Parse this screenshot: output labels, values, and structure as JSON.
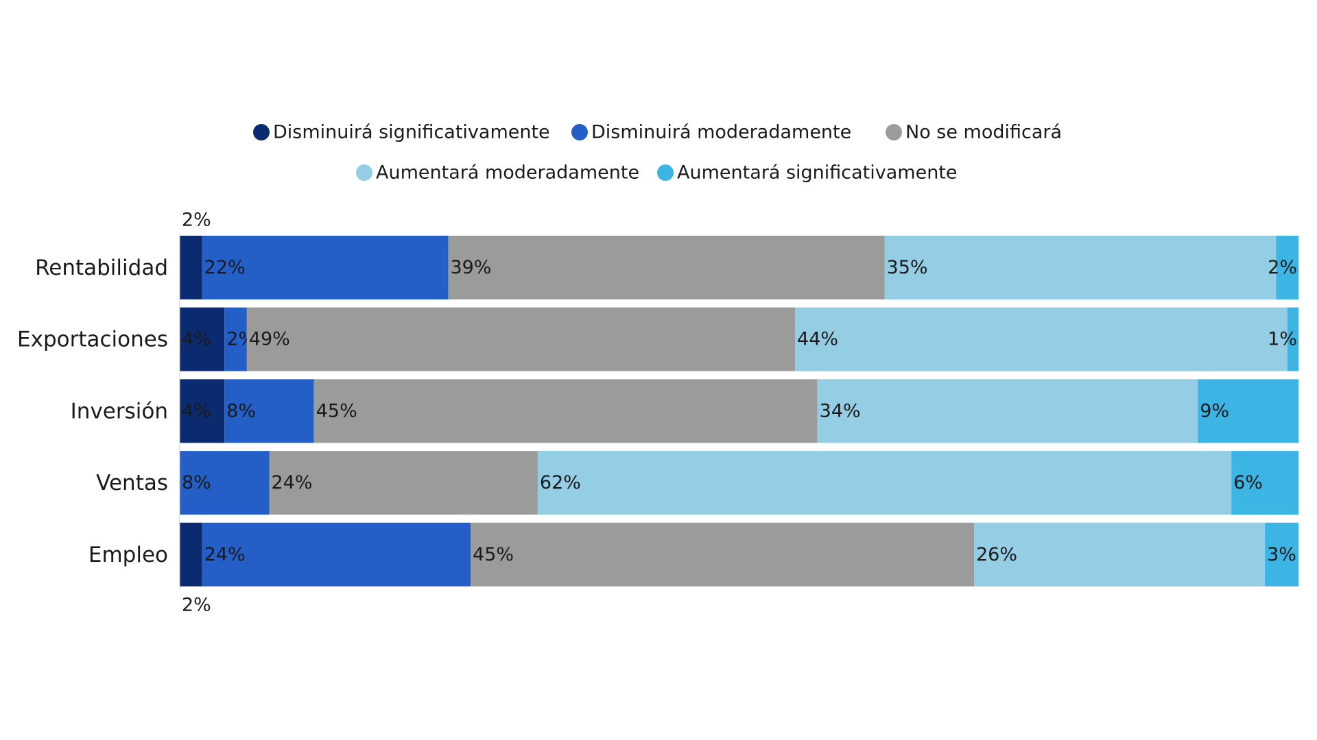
{
  "chart_data": {
    "type": "stacked-bar-horizontal",
    "categories": [
      "Rentabilidad",
      "Exportaciones",
      "Inversión",
      "Ventas",
      "Empleo"
    ],
    "xlim": [
      0,
      100
    ],
    "legend": "top",
    "series": [
      {
        "name": "Disminuirá significativamente",
        "color": "#0b2a6f",
        "values": [
          2,
          4,
          4,
          null,
          2
        ],
        "value_labels": [
          "2%",
          "4%",
          "4%",
          null,
          "2%"
        ]
      },
      {
        "name": "Disminuirá moderadamente",
        "color": "#245fc7",
        "values": [
          22,
          2,
          8,
          8,
          24
        ],
        "value_labels": [
          "22%",
          "2%",
          "8%",
          "8%",
          "24%"
        ]
      },
      {
        "name": "No se modificará",
        "color": "#9b9b9b",
        "values": [
          39,
          49,
          45,
          24,
          45
        ],
        "value_labels": [
          "39%",
          "49%",
          "45%",
          "24%",
          "45%"
        ]
      },
      {
        "name": "Aumentará moderadamente",
        "color": "#94cde4",
        "values": [
          35,
          44,
          34,
          62,
          26
        ],
        "value_labels": [
          "35%",
          "44%",
          "34%",
          "62%",
          "26%"
        ]
      },
      {
        "name": "Aumentará significativamente",
        "color": "#3cb4e4",
        "values": [
          2,
          1,
          9,
          6,
          3
        ],
        "value_labels": [
          "2%",
          "1%",
          "9%",
          "6%",
          "3%"
        ]
      }
    ]
  }
}
